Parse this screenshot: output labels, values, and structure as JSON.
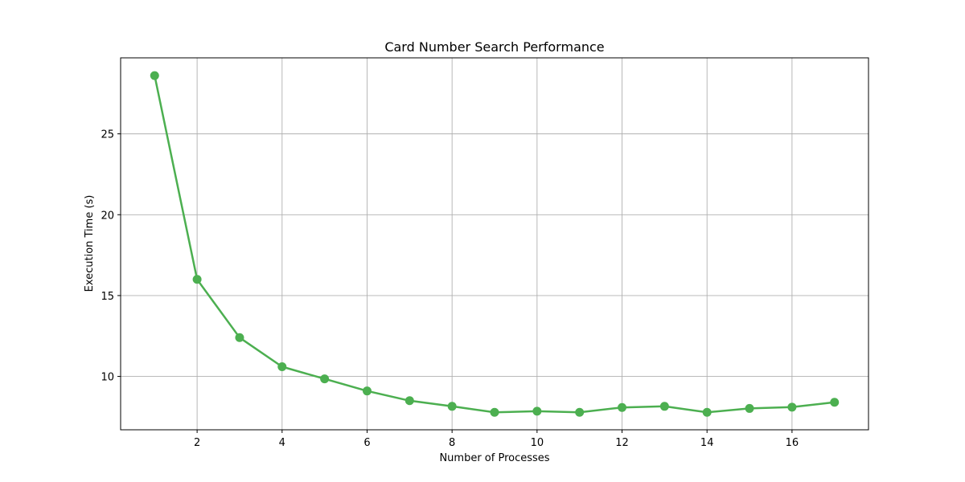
{
  "chart_data": {
    "type": "line",
    "title": "Card Number Search Performance",
    "xlabel": "Number of Processes",
    "ylabel": "Execution Time (s)",
    "xlim": [
      0.2,
      17.8
    ],
    "ylim": [
      6.7,
      29.7
    ],
    "xticks": [
      2,
      4,
      6,
      8,
      10,
      12,
      14,
      16
    ],
    "yticks": [
      10,
      15,
      20,
      25
    ],
    "grid": true,
    "color": "#4caf50",
    "series": [
      {
        "x": [
          1,
          2,
          3,
          4,
          5,
          6,
          7,
          8,
          9,
          10,
          11,
          12,
          13,
          14,
          15,
          16,
          17
        ],
        "y": [
          28.6,
          16.0,
          12.4,
          10.6,
          9.85,
          9.1,
          8.5,
          8.15,
          7.78,
          7.85,
          7.78,
          8.08,
          8.15,
          7.78,
          8.02,
          8.1,
          8.4
        ]
      }
    ]
  }
}
